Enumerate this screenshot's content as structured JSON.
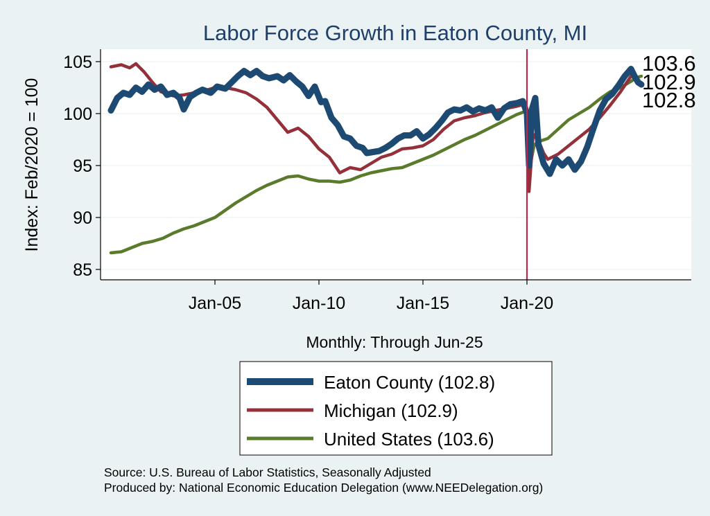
{
  "chart_data": {
    "type": "line",
    "title": "Labor Force Growth in Eaton  County, MI",
    "ylabel": "Index: Feb/2020 = 100",
    "xlabel": "Monthly: Through Jun-25",
    "source_lines": [
      "Source: U.S. Bureau of Labor Statistics, Seasonally Adjusted",
      "Produced by: National Economic Education Delegation (www.NEEDelegation.org)"
    ],
    "x_ticks": [
      {
        "label": "Jan-05",
        "x": 2005.0
      },
      {
        "label": "Jan-10",
        "x": 2010.0
      },
      {
        "label": "Jan-15",
        "x": 2015.0
      },
      {
        "label": "Jan-20",
        "x": 2020.0
      }
    ],
    "y_ticks": [
      85,
      90,
      95,
      100,
      105
    ],
    "xlim": [
      1999.5,
      2027.9
    ],
    "ylim": [
      84,
      106.2
    ],
    "reference_line_x": 2020.0,
    "reference_color": "#b9294f",
    "end_labels": [
      "103.6",
      "102.9",
      "102.8"
    ],
    "legend": {
      "placement": "bottom",
      "items": [
        {
          "label": "Eaton  County (102.8)",
          "color": "#1d4a72"
        },
        {
          "label": "Michigan (102.9)",
          "color": "#93303a"
        },
        {
          "label": "United States (103.6)",
          "color": "#5a7a2c"
        }
      ]
    },
    "series": [
      {
        "name": "Eaton  County",
        "color": "#1d4a72",
        "points": [
          [
            2000.0,
            100.3
          ],
          [
            2000.3,
            101.5
          ],
          [
            2000.6,
            102.0
          ],
          [
            2000.9,
            101.8
          ],
          [
            2001.2,
            102.5
          ],
          [
            2001.5,
            102.1
          ],
          [
            2001.8,
            102.8
          ],
          [
            2002.1,
            102.3
          ],
          [
            2002.4,
            102.6
          ],
          [
            2002.7,
            101.8
          ],
          [
            2003.0,
            102.0
          ],
          [
            2003.3,
            101.5
          ],
          [
            2003.5,
            100.4
          ],
          [
            2003.8,
            101.6
          ],
          [
            2004.1,
            102.0
          ],
          [
            2004.4,
            102.3
          ],
          [
            2004.8,
            102.0
          ],
          [
            2005.1,
            102.6
          ],
          [
            2005.5,
            102.4
          ],
          [
            2005.8,
            103.0
          ],
          [
            2006.1,
            103.6
          ],
          [
            2006.4,
            104.1
          ],
          [
            2006.7,
            103.7
          ],
          [
            2007.0,
            104.1
          ],
          [
            2007.3,
            103.6
          ],
          [
            2007.6,
            103.4
          ],
          [
            2008.0,
            103.6
          ],
          [
            2008.3,
            103.2
          ],
          [
            2008.6,
            103.7
          ],
          [
            2008.9,
            103.1
          ],
          [
            2009.2,
            102.6
          ],
          [
            2009.5,
            101.7
          ],
          [
            2009.8,
            102.6
          ],
          [
            2010.1,
            101.1
          ],
          [
            2010.3,
            101.2
          ],
          [
            2010.6,
            99.6
          ],
          [
            2010.9,
            98.9
          ],
          [
            2011.2,
            97.8
          ],
          [
            2011.5,
            97.6
          ],
          [
            2011.8,
            96.9
          ],
          [
            2012.1,
            96.7
          ],
          [
            2012.3,
            96.2
          ],
          [
            2012.6,
            96.3
          ],
          [
            2012.9,
            96.4
          ],
          [
            2013.2,
            96.7
          ],
          [
            2013.5,
            97.1
          ],
          [
            2013.8,
            97.6
          ],
          [
            2014.1,
            97.9
          ],
          [
            2014.4,
            97.9
          ],
          [
            2014.7,
            98.3
          ],
          [
            2015.0,
            97.6
          ],
          [
            2015.3,
            98.0
          ],
          [
            2015.6,
            98.6
          ],
          [
            2015.9,
            99.3
          ],
          [
            2016.2,
            100.1
          ],
          [
            2016.5,
            100.4
          ],
          [
            2016.8,
            100.3
          ],
          [
            2017.1,
            100.6
          ],
          [
            2017.4,
            100.2
          ],
          [
            2017.7,
            100.5
          ],
          [
            2018.0,
            100.3
          ],
          [
            2018.3,
            100.6
          ],
          [
            2018.6,
            99.6
          ],
          [
            2018.9,
            100.5
          ],
          [
            2019.2,
            100.9
          ],
          [
            2019.5,
            101.0
          ],
          [
            2019.8,
            101.2
          ],
          [
            2020.0,
            100.0
          ],
          [
            2020.1,
            95.0
          ],
          [
            2020.25,
            100.5
          ],
          [
            2020.4,
            101.5
          ],
          [
            2020.55,
            97.0
          ],
          [
            2020.8,
            95.2
          ],
          [
            2021.1,
            94.2
          ],
          [
            2021.4,
            95.6
          ],
          [
            2021.7,
            95.0
          ],
          [
            2022.0,
            95.6
          ],
          [
            2022.3,
            94.6
          ],
          [
            2022.6,
            95.4
          ],
          [
            2022.9,
            96.8
          ],
          [
            2023.2,
            98.6
          ],
          [
            2023.5,
            100.3
          ],
          [
            2023.8,
            101.4
          ],
          [
            2024.1,
            101.9
          ],
          [
            2024.4,
            102.7
          ],
          [
            2024.7,
            103.6
          ],
          [
            2025.0,
            104.3
          ],
          [
            2025.2,
            103.5
          ],
          [
            2025.35,
            103.0
          ],
          [
            2025.5,
            102.8
          ]
        ]
      },
      {
        "name": "Michigan",
        "color": "#93303a",
        "points": [
          [
            2000.0,
            104.5
          ],
          [
            2000.5,
            104.7
          ],
          [
            2000.9,
            104.4
          ],
          [
            2001.2,
            104.8
          ],
          [
            2001.6,
            104.0
          ],
          [
            2002.0,
            103.0
          ],
          [
            2002.4,
            102.1
          ],
          [
            2003.0,
            101.7
          ],
          [
            2003.5,
            101.8
          ],
          [
            2004.0,
            102.0
          ],
          [
            2004.5,
            102.2
          ],
          [
            2005.0,
            102.5
          ],
          [
            2005.5,
            102.5
          ],
          [
            2006.0,
            102.3
          ],
          [
            2006.5,
            102.0
          ],
          [
            2007.0,
            101.4
          ],
          [
            2007.5,
            100.6
          ],
          [
            2008.0,
            99.4
          ],
          [
            2008.5,
            98.2
          ],
          [
            2009.0,
            98.6
          ],
          [
            2009.5,
            97.8
          ],
          [
            2010.0,
            96.6
          ],
          [
            2010.5,
            95.8
          ],
          [
            2011.0,
            94.3
          ],
          [
            2011.5,
            94.8
          ],
          [
            2012.0,
            94.6
          ],
          [
            2012.5,
            95.2
          ],
          [
            2013.0,
            95.8
          ],
          [
            2013.5,
            96.1
          ],
          [
            2014.0,
            96.6
          ],
          [
            2014.5,
            96.7
          ],
          [
            2015.0,
            96.9
          ],
          [
            2015.5,
            97.5
          ],
          [
            2016.0,
            98.5
          ],
          [
            2016.5,
            99.3
          ],
          [
            2017.0,
            99.6
          ],
          [
            2017.5,
            99.8
          ],
          [
            2018.0,
            100.1
          ],
          [
            2018.5,
            100.3
          ],
          [
            2019.0,
            100.5
          ],
          [
            2019.5,
            100.7
          ],
          [
            2019.9,
            100.9
          ],
          [
            2020.0,
            100.2
          ],
          [
            2020.1,
            92.5
          ],
          [
            2020.3,
            98.0
          ],
          [
            2020.6,
            97.2
          ],
          [
            2020.8,
            96.2
          ],
          [
            2021.0,
            95.6
          ],
          [
            2021.5,
            96.1
          ],
          [
            2022.0,
            96.9
          ],
          [
            2022.5,
            97.7
          ],
          [
            2023.0,
            98.5
          ],
          [
            2023.5,
            99.6
          ],
          [
            2024.0,
            100.8
          ],
          [
            2024.5,
            102.1
          ],
          [
            2025.0,
            103.6
          ],
          [
            2025.3,
            103.3
          ],
          [
            2025.5,
            102.9
          ]
        ]
      },
      {
        "name": "United States",
        "color": "#5a7a2c",
        "points": [
          [
            2000.0,
            86.6
          ],
          [
            2000.5,
            86.7
          ],
          [
            2001.0,
            87.1
          ],
          [
            2001.5,
            87.5
          ],
          [
            2002.0,
            87.7
          ],
          [
            2002.5,
            88.0
          ],
          [
            2003.0,
            88.5
          ],
          [
            2003.5,
            88.9
          ],
          [
            2004.0,
            89.2
          ],
          [
            2004.5,
            89.6
          ],
          [
            2005.0,
            90.0
          ],
          [
            2005.5,
            90.7
          ],
          [
            2006.0,
            91.4
          ],
          [
            2006.5,
            92.0
          ],
          [
            2007.0,
            92.6
          ],
          [
            2007.5,
            93.1
          ],
          [
            2008.0,
            93.5
          ],
          [
            2008.5,
            93.9
          ],
          [
            2009.0,
            94.0
          ],
          [
            2009.5,
            93.7
          ],
          [
            2010.0,
            93.5
          ],
          [
            2010.5,
            93.5
          ],
          [
            2011.0,
            93.4
          ],
          [
            2011.5,
            93.6
          ],
          [
            2012.0,
            94.0
          ],
          [
            2012.5,
            94.3
          ],
          [
            2013.0,
            94.5
          ],
          [
            2013.5,
            94.7
          ],
          [
            2014.0,
            94.8
          ],
          [
            2014.5,
            95.2
          ],
          [
            2015.0,
            95.6
          ],
          [
            2015.5,
            96.0
          ],
          [
            2016.0,
            96.5
          ],
          [
            2016.5,
            97.0
          ],
          [
            2017.0,
            97.5
          ],
          [
            2017.5,
            97.9
          ],
          [
            2018.0,
            98.4
          ],
          [
            2018.5,
            98.9
          ],
          [
            2019.0,
            99.4
          ],
          [
            2019.5,
            99.9
          ],
          [
            2019.9,
            100.2
          ],
          [
            2020.0,
            100.0
          ],
          [
            2020.15,
            95.0
          ],
          [
            2020.35,
            97.0
          ],
          [
            2020.7,
            97.4
          ],
          [
            2021.0,
            97.6
          ],
          [
            2021.5,
            98.5
          ],
          [
            2022.0,
            99.4
          ],
          [
            2022.5,
            100.0
          ],
          [
            2023.0,
            100.6
          ],
          [
            2023.5,
            101.4
          ],
          [
            2024.0,
            102.1
          ],
          [
            2024.5,
            102.5
          ],
          [
            2025.0,
            103.1
          ],
          [
            2025.3,
            103.5
          ],
          [
            2025.5,
            103.6
          ]
        ]
      }
    ]
  }
}
